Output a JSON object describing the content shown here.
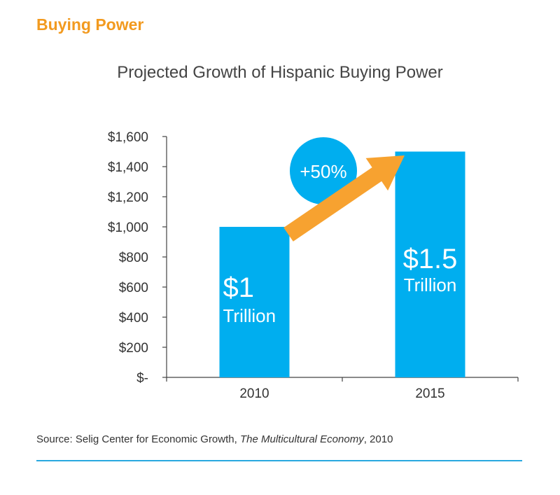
{
  "heading": "Buying Power",
  "source": {
    "prefix": "Source: Selig Center for Economic Growth, ",
    "publication": "The Multicultural Economy",
    "suffix": ", 2010"
  },
  "colors": {
    "heading": "#f29a1f",
    "bar": "#00aeef",
    "arrow": "#f7a230",
    "bubble": "#00aeef",
    "rule": "#29a8df"
  },
  "chart_data": {
    "type": "bar",
    "title": "Projected Growth of Hispanic Buying Power",
    "categories": [
      "2010",
      "2015"
    ],
    "values": [
      1000,
      1500
    ],
    "ylim": [
      0,
      1600
    ],
    "yticks": [
      0,
      200,
      400,
      600,
      800,
      1000,
      1200,
      1400,
      1600
    ],
    "ytick_labels": [
      "$-",
      "$200",
      "$400",
      "$600",
      "$800",
      "$1,000",
      "$1,200",
      "$1,400",
      "$1,600"
    ],
    "bar_labels": [
      {
        "amount": "$1",
        "unit": "Trillion"
      },
      {
        "amount": "$1.5",
        "unit": "Trillion"
      }
    ],
    "annotation": "+50%",
    "grid": false,
    "legend": "none"
  }
}
